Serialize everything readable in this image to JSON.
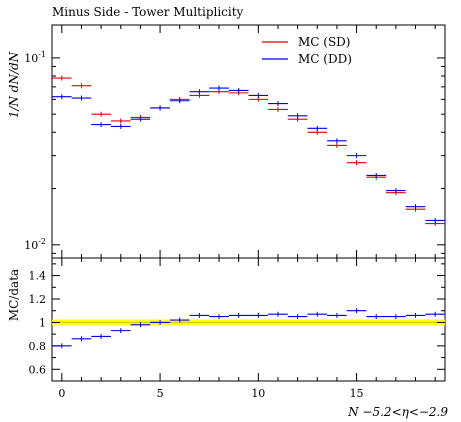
{
  "chart_data": [
    {
      "type": "line",
      "title": "Minus Side - Tower Multiplicity",
      "ylabel": "1/N dN/dN",
      "yscale": "log",
      "ylim": [
        0.0085,
        0.15
      ],
      "xlim": [
        -0.5,
        19.5
      ],
      "yticks": [
        {
          "label": "10^-1",
          "value": 0.1
        },
        {
          "label": "10^-2",
          "value": 0.01
        }
      ],
      "legend": {
        "placement": "top-right"
      },
      "x": [
        0,
        1,
        2,
        3,
        4,
        5,
        6,
        7,
        8,
        9,
        10,
        11,
        12,
        13,
        14,
        15,
        16,
        17,
        18,
        19
      ],
      "series": [
        {
          "name": "MC (SD)",
          "color": "#e00000",
          "values": [
            0.078,
            0.071,
            0.05,
            0.046,
            0.048,
            0.054,
            0.06,
            0.063,
            0.066,
            0.065,
            0.06,
            0.053,
            0.047,
            0.04,
            0.034,
            0.0275,
            0.023,
            0.019,
            0.0155,
            0.013
          ]
        },
        {
          "name": "MC (DD)",
          "color": "#0000e0",
          "values": [
            0.062,
            0.061,
            0.044,
            0.043,
            0.047,
            0.054,
            0.059,
            0.066,
            0.069,
            0.067,
            0.063,
            0.057,
            0.049,
            0.042,
            0.036,
            0.03,
            0.0235,
            0.0195,
            0.016,
            0.0135
          ]
        }
      ]
    },
    {
      "type": "line",
      "ylabel": "MC/data",
      "xlabel": "N −5.2<η<−2.9",
      "ylim": [
        0.5,
        1.55
      ],
      "xlim": [
        -0.5,
        19.5
      ],
      "yticks": [
        0.6,
        0.8,
        1,
        1.2,
        1.4
      ],
      "xticks": [
        0,
        5,
        10,
        15
      ],
      "band": {
        "low": 0.975,
        "high": 1.025,
        "color": "#ffff00"
      },
      "x": [
        0,
        1,
        2,
        3,
        4,
        5,
        6,
        7,
        8,
        9,
        10,
        11,
        12,
        13,
        14,
        15,
        16,
        17,
        18,
        19
      ],
      "series": [
        {
          "name": "MC (DD)",
          "color": "#0000e0",
          "values": [
            0.8,
            0.86,
            0.88,
            0.93,
            0.98,
            1.0,
            1.02,
            1.06,
            1.05,
            1.06,
            1.06,
            1.07,
            1.05,
            1.07,
            1.06,
            1.1,
            1.05,
            1.05,
            1.06,
            1.07
          ]
        }
      ]
    }
  ]
}
